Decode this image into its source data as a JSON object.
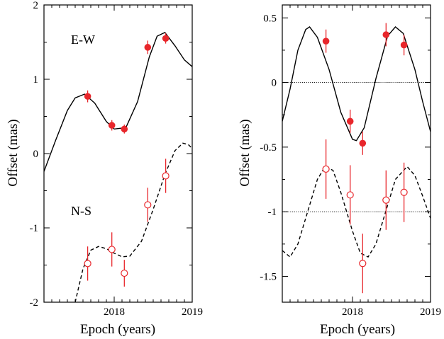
{
  "chart_data": [
    {
      "type": "scatter",
      "xlabel": "Epoch (years)",
      "ylabel": "Offset (mas)",
      "xlim": [
        2017.1,
        2019.0
      ],
      "ylim": [
        -2,
        2
      ],
      "x_ticks": [
        2018,
        2019
      ],
      "x_tick_labels": [
        "2018",
        "2019"
      ],
      "y_ticks": [
        -2,
        -1,
        0,
        1,
        2
      ],
      "y_tick_labels": [
        "-2",
        "-1",
        "0",
        "1",
        "2"
      ],
      "annotations": [
        "E-W",
        "N-S"
      ],
      "series": [
        {
          "name": "E-W",
          "marker": "filled-circle",
          "color": "#e8262b",
          "points": [
            {
              "x": 2017.66,
              "y": 0.77,
              "err": 0.08
            },
            {
              "x": 2017.97,
              "y": 0.38,
              "err": 0.07
            },
            {
              "x": 2018.13,
              "y": 0.33,
              "err": 0.06
            },
            {
              "x": 2018.43,
              "y": 1.43,
              "err": 0.09
            },
            {
              "x": 2018.66,
              "y": 1.55,
              "err": 0.07
            }
          ],
          "model_line": "solid",
          "model": [
            [
              2017.1,
              -0.24
            ],
            [
              2017.25,
              0.18
            ],
            [
              2017.4,
              0.58
            ],
            [
              2017.5,
              0.75
            ],
            [
              2017.62,
              0.8
            ],
            [
              2017.75,
              0.68
            ],
            [
              2017.9,
              0.43
            ],
            [
              2018.0,
              0.33
            ],
            [
              2018.15,
              0.35
            ],
            [
              2018.3,
              0.7
            ],
            [
              2018.45,
              1.3
            ],
            [
              2018.55,
              1.58
            ],
            [
              2018.65,
              1.63
            ],
            [
              2018.78,
              1.45
            ],
            [
              2018.9,
              1.26
            ],
            [
              2019.0,
              1.17
            ]
          ]
        },
        {
          "name": "N-S",
          "marker": "open-circle",
          "color": "#e8262b",
          "points": [
            {
              "x": 2017.66,
              "y": -1.48,
              "err": 0.23
            },
            {
              "x": 2017.97,
              "y": -1.29,
              "err": 0.23
            },
            {
              "x": 2018.13,
              "y": -1.61,
              "err": 0.18
            },
            {
              "x": 2018.43,
              "y": -0.69,
              "err": 0.23
            },
            {
              "x": 2018.66,
              "y": -0.3,
              "err": 0.23
            }
          ],
          "model_line": "dashed",
          "model": [
            [
              2017.5,
              -2.0
            ],
            [
              2017.6,
              -1.55
            ],
            [
              2017.7,
              -1.3
            ],
            [
              2017.8,
              -1.25
            ],
            [
              2017.9,
              -1.28
            ],
            [
              2018.0,
              -1.34
            ],
            [
              2018.1,
              -1.39
            ],
            [
              2018.2,
              -1.38
            ],
            [
              2018.35,
              -1.18
            ],
            [
              2018.5,
              -0.75
            ],
            [
              2018.65,
              -0.28
            ],
            [
              2018.78,
              0.04
            ],
            [
              2018.88,
              0.14
            ],
            [
              2018.95,
              0.12
            ],
            [
              2019.0,
              0.07
            ]
          ]
        }
      ]
    },
    {
      "type": "scatter",
      "xlabel": "Epoch (years)",
      "ylabel": "Offset (mas)",
      "xlim": [
        2017.1,
        2019.0
      ],
      "ylim": [
        -1.7,
        0.6
      ],
      "x_ticks": [
        2018,
        2019
      ],
      "x_tick_labels": [
        "2018",
        "2019"
      ],
      "y_ticks": [
        0.5,
        0,
        -0.5,
        -1,
        -1.5
      ],
      "y_tick_labels": [
        "0.5",
        "0",
        "-0.5",
        "-1",
        "-1.5"
      ],
      "reference_lines": [
        0,
        -1
      ],
      "series": [
        {
          "marker": "filled-circle",
          "color": "#e8262b",
          "points": [
            {
              "x": 2017.66,
              "y": 0.32,
              "err": 0.09
            },
            {
              "x": 2017.97,
              "y": -0.3,
              "err": 0.09
            },
            {
              "x": 2018.13,
              "y": -0.47,
              "err": 0.09
            },
            {
              "x": 2018.43,
              "y": 0.37,
              "err": 0.09
            },
            {
              "x": 2018.66,
              "y": 0.29,
              "err": 0.08
            }
          ],
          "model_line": "solid",
          "model": [
            [
              2017.1,
              -0.3
            ],
            [
              2017.2,
              -0.05
            ],
            [
              2017.3,
              0.25
            ],
            [
              2017.4,
              0.41
            ],
            [
              2017.45,
              0.43
            ],
            [
              2017.55,
              0.35
            ],
            [
              2017.7,
              0.1
            ],
            [
              2017.85,
              -0.23
            ],
            [
              2018.0,
              -0.44
            ],
            [
              2018.05,
              -0.45
            ],
            [
              2018.15,
              -0.35
            ],
            [
              2018.3,
              0.03
            ],
            [
              2018.45,
              0.36
            ],
            [
              2018.55,
              0.43
            ],
            [
              2018.65,
              0.38
            ],
            [
              2018.8,
              0.1
            ],
            [
              2018.9,
              -0.15
            ],
            [
              2019.0,
              -0.38
            ]
          ]
        },
        {
          "marker": "open-circle",
          "color": "#e8262b",
          "points": [
            {
              "x": 2017.66,
              "y": -0.67,
              "err": 0.23
            },
            {
              "x": 2017.97,
              "y": -0.87,
              "err": 0.23
            },
            {
              "x": 2018.13,
              "y": -1.4,
              "err": 0.23
            },
            {
              "x": 2018.43,
              "y": -0.91,
              "err": 0.23
            },
            {
              "x": 2018.66,
              "y": -0.85,
              "err": 0.23
            }
          ],
          "model_line": "dashed",
          "model": [
            [
              2017.1,
              -1.3
            ],
            [
              2017.2,
              -1.35
            ],
            [
              2017.3,
              -1.25
            ],
            [
              2017.45,
              -0.95
            ],
            [
              2017.55,
              -0.75
            ],
            [
              2017.65,
              -0.65
            ],
            [
              2017.75,
              -0.68
            ],
            [
              2017.85,
              -0.85
            ],
            [
              2018.0,
              -1.15
            ],
            [
              2018.1,
              -1.32
            ],
            [
              2018.2,
              -1.35
            ],
            [
              2018.3,
              -1.25
            ],
            [
              2018.45,
              -0.95
            ],
            [
              2018.55,
              -0.75
            ],
            [
              2018.7,
              -0.65
            ],
            [
              2018.8,
              -0.72
            ],
            [
              2018.9,
              -0.88
            ],
            [
              2019.0,
              -1.05
            ]
          ]
        }
      ]
    }
  ]
}
